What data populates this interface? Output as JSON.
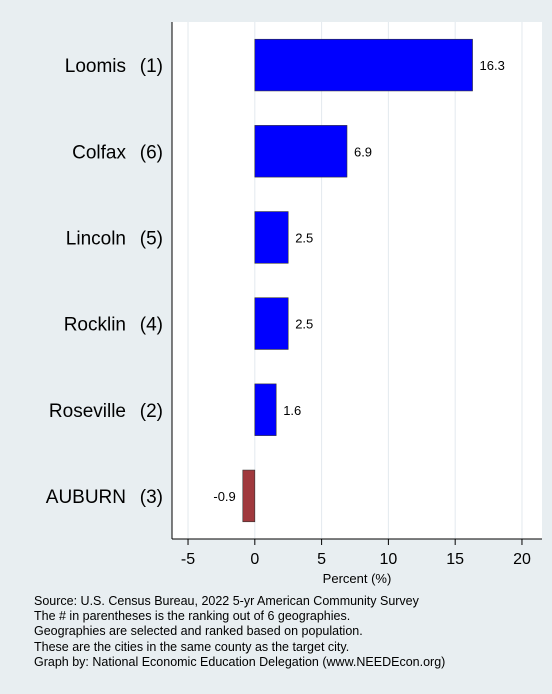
{
  "chart_data": {
    "type": "bar",
    "orientation": "horizontal",
    "categories": [
      "Loomis (1)",
      "Colfax (6)",
      "Lincoln (5)",
      "Rocklin (4)",
      "Roseville (2)",
      "AUBURN (3)"
    ],
    "values": [
      16.3,
      6.9,
      2.5,
      2.5,
      1.6,
      -0.9
    ],
    "value_labels": [
      "16.3",
      "6.9",
      "2.5",
      "2.5",
      "1.6",
      "-0.9"
    ],
    "highlight_category": "AUBURN (3)",
    "xlabel": "Percent (%)",
    "xlim": [
      -6.2,
      21.5
    ],
    "xticks": [
      -5,
      0,
      5,
      10,
      15,
      20
    ],
    "xtick_labels": [
      "-5",
      "0",
      "5",
      "10",
      "15",
      "20"
    ],
    "grid": true,
    "colors": {
      "bar": "#0000ff",
      "highlight_bar": "#a0393d",
      "plot_background": "#ffffff",
      "page_background": "#e8eef1",
      "gridline": "#e3e9ee"
    }
  },
  "notes": [
    "Source: U.S. Census Bureau, 2022 5-yr American Community Survey",
    "The # in parentheses is the ranking out of 6 geographies.",
    "Geographies are selected and ranked based on population.",
    "These are the cities in the same county as the target city.",
    "Graph by: National Economic Education Delegation (www.NEEDEcon.org)"
  ]
}
